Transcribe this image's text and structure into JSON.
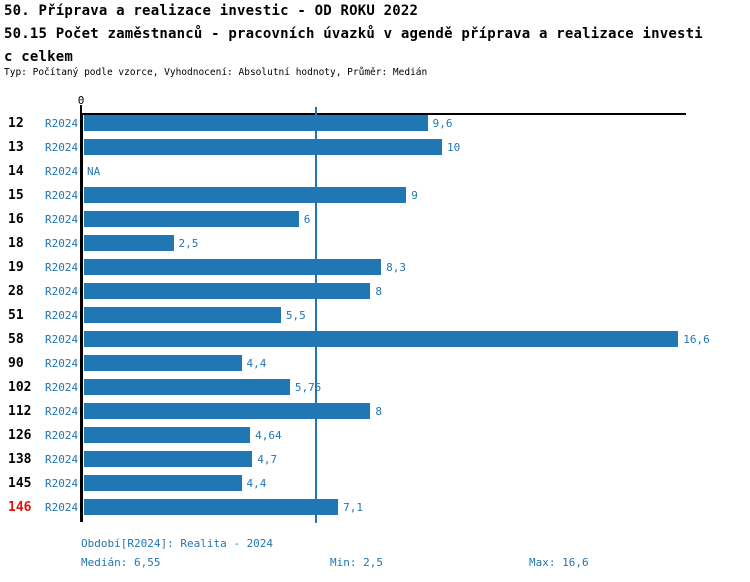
{
  "header": {
    "title_line1": "50. Příprava a realizace investic - OD ROKU 2022",
    "title_line2": "50.15 Počet zaměstnanců - pracovních úvazků v agendě příprava a realizace investi",
    "title_line3": "c celkem",
    "subtitle": "Typ: Počítaný podle vzorce, Vyhodnocení: Absolutní hodnoty, Průměr: Medián"
  },
  "chart_data": {
    "type": "bar",
    "orientation": "horizontal",
    "title": "50.15 Počet zaměstnanců - pracovních úvazků v agendě příprava a realizace investic celkem",
    "axis_zero_label": "0",
    "series_label": "R2024",
    "categories": [
      "12",
      "13",
      "14",
      "15",
      "16",
      "18",
      "19",
      "28",
      "51",
      "58",
      "90",
      "102",
      "112",
      "126",
      "138",
      "145",
      "146"
    ],
    "values": [
      9.6,
      10,
      null,
      9,
      6,
      2.5,
      8.3,
      8,
      5.5,
      16.6,
      4.4,
      5.75,
      8,
      4.64,
      4.7,
      4.4,
      7.1
    ],
    "value_labels": [
      "9,6",
      "10",
      "NA",
      "9",
      "6",
      "2,5",
      "8,3",
      "8",
      "5,5",
      "16,6",
      "4,4",
      "5,75",
      "8",
      "4,64",
      "4,7",
      "4,4",
      "7,1"
    ],
    "highlighted_category": "146",
    "median": 6.55,
    "min": 2.5,
    "max": 16.6,
    "xlim": [
      0,
      16.8
    ],
    "grid": false,
    "bar_color": "#2177b4",
    "text_blue": "#2177b4",
    "highlight_red": "#dd1111"
  },
  "footer": {
    "period": "Období[R2024]: Realita - 2024",
    "median": "Medián: 6,55",
    "min": "Min: 2,5",
    "max": "Max: 16,6"
  }
}
